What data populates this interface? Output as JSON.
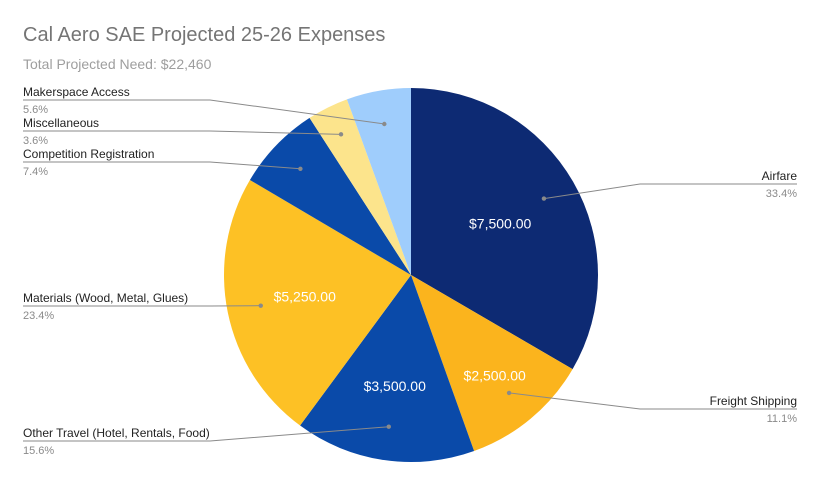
{
  "chart_data": {
    "type": "pie",
    "title": "Cal Aero SAE Projected 25-26 Expenses",
    "subtitle": "Total Projected Need: $22,460",
    "slices": [
      {
        "key": "airfare",
        "label": "Airfare",
        "value": 7500,
        "percent": "33.4%",
        "value_label": "$7,500.00",
        "color": "#0d2a73"
      },
      {
        "key": "freight",
        "label": "Freight Shipping",
        "value": 2500,
        "percent": "11.1%",
        "value_label": "$2,500.00",
        "color": "#fbb41d"
      },
      {
        "key": "travel",
        "label": "Other Travel (Hotel, Rentals, Food)",
        "value": 3500,
        "percent": "15.6%",
        "value_label": "$3,500.00",
        "color": "#0a4aa9"
      },
      {
        "key": "materials",
        "label": "Materials (Wood, Metal, Glues)",
        "value": 5250,
        "percent": "23.4%",
        "value_label": "$5,250.00",
        "color": "#fdc125"
      },
      {
        "key": "competition",
        "label": "Competition Registration",
        "value": 1660,
        "percent": "7.4%",
        "value_label": "",
        "color": "#0a4aa9"
      },
      {
        "key": "misc",
        "label": "Miscellaneous",
        "value": 800,
        "percent": "3.6%",
        "value_label": "",
        "color": "#fce48c"
      },
      {
        "key": "makerspace",
        "label": "Makerspace Access",
        "value": 1250,
        "percent": "5.6%",
        "value_label": "",
        "color": "#9fcdfc"
      }
    ]
  }
}
